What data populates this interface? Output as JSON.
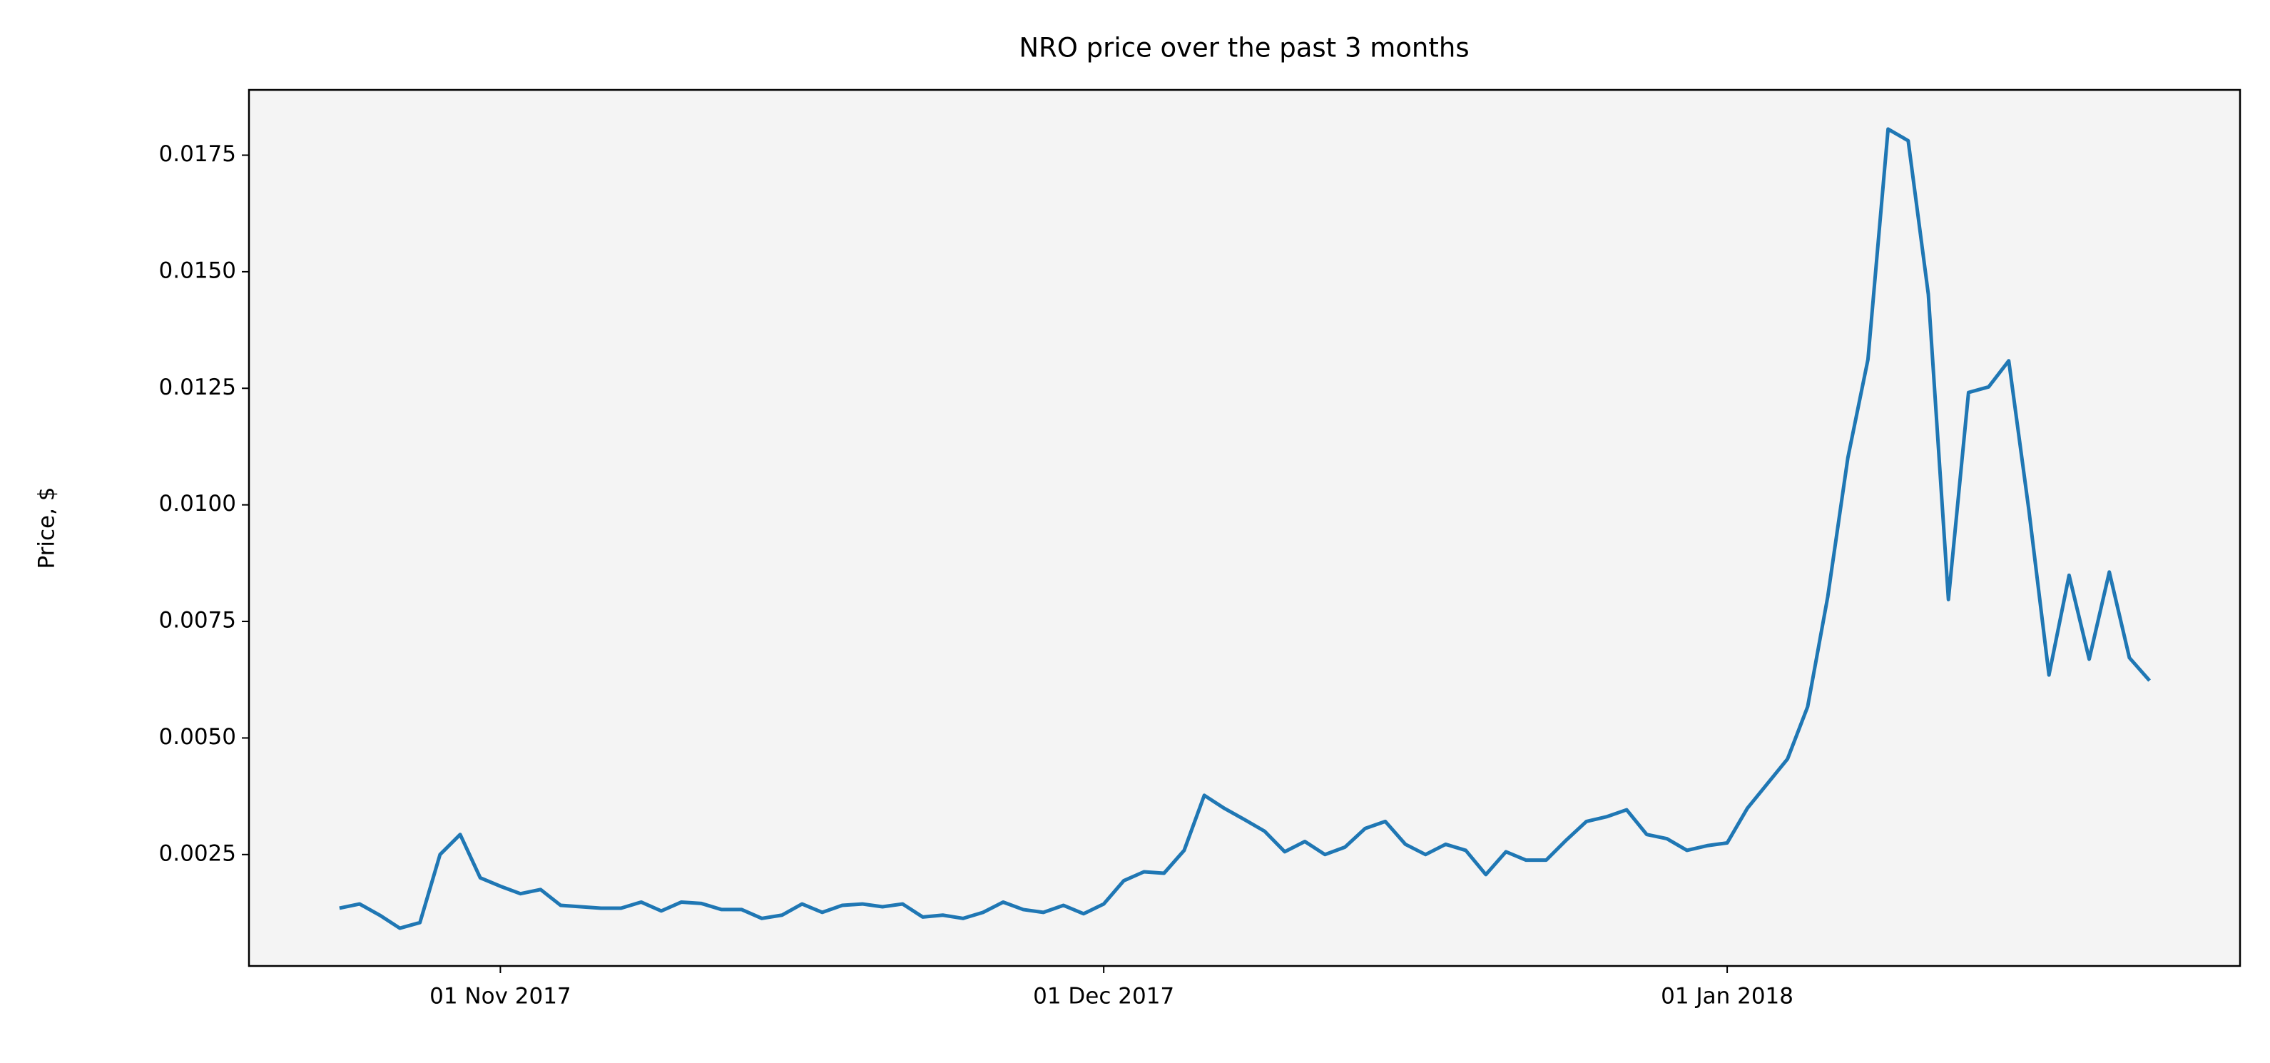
{
  "chart_data": {
    "type": "line",
    "title": "NRO price over the past 3 months",
    "ylabel": "Price, $",
    "x": [
      "2017-10-24",
      "2017-10-25",
      "2017-10-26",
      "2017-10-27",
      "2017-10-28",
      "2017-10-29",
      "2017-10-30",
      "2017-10-31",
      "2017-11-01",
      "2017-11-02",
      "2017-11-03",
      "2017-11-04",
      "2017-11-05",
      "2017-11-06",
      "2017-11-07",
      "2017-11-08",
      "2017-11-09",
      "2017-11-10",
      "2017-11-11",
      "2017-11-12",
      "2017-11-13",
      "2017-11-14",
      "2017-11-15",
      "2017-11-16",
      "2017-11-17",
      "2017-11-18",
      "2017-11-19",
      "2017-11-20",
      "2017-11-21",
      "2017-11-22",
      "2017-11-23",
      "2017-11-24",
      "2017-11-25",
      "2017-11-26",
      "2017-11-27",
      "2017-11-28",
      "2017-11-29",
      "2017-11-30",
      "2017-12-01",
      "2017-12-02",
      "2017-12-03",
      "2017-12-04",
      "2017-12-05",
      "2017-12-06",
      "2017-12-07",
      "2017-12-08",
      "2017-12-09",
      "2017-12-10",
      "2017-12-11",
      "2017-12-12",
      "2017-12-13",
      "2017-12-14",
      "2017-12-15",
      "2017-12-16",
      "2017-12-17",
      "2017-12-18",
      "2017-12-19",
      "2017-12-20",
      "2017-12-21",
      "2017-12-22",
      "2017-12-23",
      "2017-12-24",
      "2017-12-25",
      "2017-12-26",
      "2017-12-27",
      "2017-12-28",
      "2017-12-29",
      "2017-12-30",
      "2017-12-31",
      "2018-01-01",
      "2018-01-02",
      "2018-01-03",
      "2018-01-04",
      "2018-01-05",
      "2018-01-06",
      "2018-01-07",
      "2018-01-08",
      "2018-01-09",
      "2018-01-10",
      "2018-01-11",
      "2018-01-12",
      "2018-01-13",
      "2018-01-14",
      "2018-01-15",
      "2018-01-16",
      "2018-01-17",
      "2018-01-18",
      "2018-01-19",
      "2018-01-20",
      "2018-01-21",
      "2018-01-22"
    ],
    "series": [
      {
        "name": "NRO",
        "color": "#1f77b4",
        "values": [
          0.00135,
          0.00144,
          0.0012,
          0.00092,
          0.00104,
          0.0025,
          0.00293,
          0.002,
          0.00182,
          0.00166,
          0.00175,
          0.00141,
          0.00138,
          0.00135,
          0.00135,
          0.00148,
          0.00129,
          0.00148,
          0.00145,
          0.00132,
          0.00132,
          0.00113,
          0.0012,
          0.00144,
          0.00126,
          0.00141,
          0.00144,
          0.00138,
          0.00144,
          0.00116,
          0.0012,
          0.00113,
          0.00126,
          0.00148,
          0.00132,
          0.00126,
          0.00141,
          0.00123,
          0.00144,
          0.00194,
          0.00213,
          0.0021,
          0.00259,
          0.00377,
          0.00349,
          0.00325,
          0.003,
          0.00256,
          0.00278,
          0.0025,
          0.00266,
          0.00306,
          0.00321,
          0.00272,
          0.0025,
          0.00272,
          0.00259,
          0.00207,
          0.00256,
          0.00238,
          0.00238,
          0.00281,
          0.00321,
          0.00331,
          0.00346,
          0.00293,
          0.00284,
          0.00259,
          0.00269,
          0.00275,
          0.00349,
          0.00402,
          0.00455,
          0.00567,
          0.00803,
          0.01101,
          0.01312,
          0.01806,
          0.01781,
          0.01452,
          0.00797,
          0.01241,
          0.01253,
          0.01309,
          0.00989,
          0.00635,
          0.00849,
          0.00669,
          0.00856,
          0.00672,
          0.00623
        ]
      }
    ],
    "xlim": [
      "2017-10-19T12:00Z",
      "2018-01-26T12:00Z"
    ],
    "xticks": [
      {
        "value": "2017-11-01",
        "label": "01 Nov 2017"
      },
      {
        "value": "2017-12-01",
        "label": "01 Dec 2017"
      },
      {
        "value": "2018-01-01",
        "label": "01 Jan 2018"
      }
    ],
    "ylim": [
      0.00011,
      0.0189
    ],
    "yticks": [
      0.0025,
      {
        "value": 0.005,
        "label": "0.0050"
      },
      0.0075,
      {
        "value": 0.01,
        "label": "0.0100"
      },
      0.0125,
      {
        "value": 0.015,
        "label": "0.0150"
      },
      0.0175
    ],
    "grid": false,
    "background": "#f4f4f4"
  }
}
